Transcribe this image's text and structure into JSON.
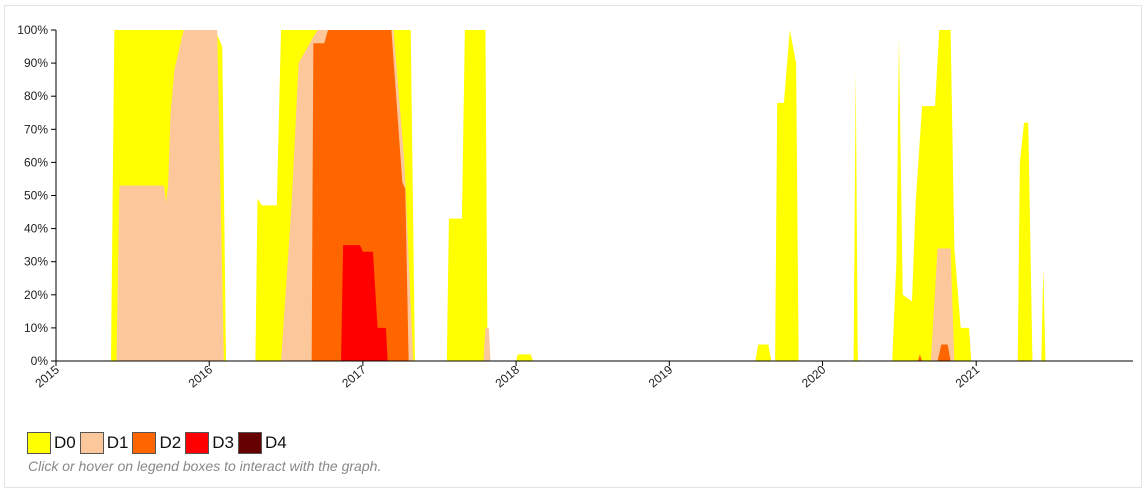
{
  "chart_data": {
    "type": "area",
    "stacked": false,
    "x_axis": {
      "kind": "date",
      "range": [
        "2015-01-01",
        "2021-12-31"
      ],
      "tick_labels": [
        "2015",
        "2016",
        "2017",
        "2018",
        "2019",
        "2020",
        "2021"
      ]
    },
    "y_axis": {
      "range": [
        0,
        100
      ],
      "tick_labels": [
        "0%",
        "10%",
        "20%",
        "30%",
        "40%",
        "50%",
        "60%",
        "70%",
        "80%",
        "90%",
        "100%"
      ]
    },
    "grid": false,
    "legend_position": "bottom-left",
    "series": [
      {
        "name": "D0",
        "color": "#FFFF00",
        "points": [
          [
            "2015-05-12",
            0
          ],
          [
            "2015-05-20",
            100
          ],
          [
            "2015-08-01",
            100
          ],
          [
            "2015-08-20",
            100
          ],
          [
            "2016-01-15",
            100
          ],
          [
            "2016-02-01",
            95
          ],
          [
            "2016-02-10",
            0
          ],
          [
            "2016-04-20",
            0
          ],
          [
            "2016-04-25",
            49
          ],
          [
            "2016-05-05",
            47
          ],
          [
            "2016-06-10",
            47
          ],
          [
            "2016-06-20",
            100
          ],
          [
            "2016-07-30",
            100
          ],
          [
            "2016-08-01",
            100
          ],
          [
            "2017-04-25",
            100
          ],
          [
            "2017-05-05",
            0
          ],
          [
            "2017-07-20",
            0
          ],
          [
            "2017-07-25",
            43
          ],
          [
            "2017-08-25",
            43
          ],
          [
            "2017-09-01",
            100
          ],
          [
            "2017-10-20",
            100
          ],
          [
            "2017-10-25",
            0
          ],
          [
            "2018-01-01",
            0
          ],
          [
            "2018-01-05",
            2
          ],
          [
            "2018-02-05",
            2
          ],
          [
            "2018-02-10",
            0
          ],
          [
            "2019-07-25",
            0
          ],
          [
            "2019-08-01",
            5
          ],
          [
            "2019-08-25",
            5
          ],
          [
            "2019-09-01",
            0
          ],
          [
            "2019-09-10",
            0
          ],
          [
            "2019-09-15",
            78
          ],
          [
            "2019-10-01",
            78
          ],
          [
            "2019-10-15",
            100
          ],
          [
            "2019-10-30",
            90
          ],
          [
            "2019-11-05",
            0
          ],
          [
            "2020-03-15",
            0
          ],
          [
            "2020-03-20",
            88
          ],
          [
            "2020-03-25",
            0
          ],
          [
            "2020-06-15",
            0
          ],
          [
            "2020-06-25",
            30
          ],
          [
            "2020-07-01",
            98
          ],
          [
            "2020-07-10",
            20
          ],
          [
            "2020-08-01",
            18
          ],
          [
            "2020-08-10",
            48
          ],
          [
            "2020-08-25",
            77
          ],
          [
            "2020-09-25",
            77
          ],
          [
            "2020-10-05",
            100
          ],
          [
            "2020-11-01",
            100
          ],
          [
            "2020-11-10",
            34
          ],
          [
            "2020-11-25",
            10
          ],
          [
            "2020-12-15",
            10
          ],
          [
            "2020-12-20",
            0
          ],
          [
            "2021-04-10",
            0
          ],
          [
            "2021-04-15",
            60
          ],
          [
            "2021-04-25",
            72
          ],
          [
            "2021-05-05",
            72
          ],
          [
            "2021-05-15",
            0
          ],
          [
            "2021-06-05",
            0
          ],
          [
            "2021-06-10",
            28
          ],
          [
            "2021-06-15",
            0
          ]
        ]
      },
      {
        "name": "D1",
        "color": "#FCC89B",
        "points": [
          [
            "2015-05-25",
            0
          ],
          [
            "2015-06-01",
            53
          ],
          [
            "2015-09-15",
            53
          ],
          [
            "2015-09-20",
            48
          ],
          [
            "2015-09-25",
            53
          ],
          [
            "2015-10-01",
            75
          ],
          [
            "2015-10-10",
            88
          ],
          [
            "2015-11-01",
            100
          ],
          [
            "2016-01-05",
            100
          ],
          [
            "2016-01-20",
            100
          ],
          [
            "2016-02-05",
            0
          ],
          [
            "2016-06-20",
            0
          ],
          [
            "2016-07-15",
            47
          ],
          [
            "2016-08-01",
            90
          ],
          [
            "2016-09-01",
            97
          ],
          [
            "2016-09-15",
            100
          ],
          [
            "2017-03-15",
            100
          ],
          [
            "2017-04-10",
            60
          ],
          [
            "2017-05-01",
            0
          ],
          [
            "2017-10-15",
            0
          ],
          [
            "2017-10-20",
            10
          ],
          [
            "2017-10-28",
            10
          ],
          [
            "2017-11-01",
            0
          ],
          [
            "2020-09-15",
            0
          ],
          [
            "2020-10-01",
            34
          ],
          [
            "2020-11-01",
            34
          ],
          [
            "2020-11-10",
            0
          ]
        ]
      },
      {
        "name": "D2",
        "color": "#FF6600",
        "points": [
          [
            "2016-09-01",
            0
          ],
          [
            "2016-09-05",
            96
          ],
          [
            "2016-10-01",
            96
          ],
          [
            "2016-10-10",
            100
          ],
          [
            "2017-02-15",
            100
          ],
          [
            "2017-03-10",
            100
          ],
          [
            "2017-04-05",
            54
          ],
          [
            "2017-04-12",
            52
          ],
          [
            "2017-04-20",
            0
          ],
          [
            "2020-08-15",
            0
          ],
          [
            "2020-08-20",
            2
          ],
          [
            "2020-08-25",
            0
          ],
          [
            "2020-10-01",
            0
          ],
          [
            "2020-10-10",
            5
          ],
          [
            "2020-10-25",
            5
          ],
          [
            "2020-11-01",
            0
          ]
        ]
      },
      {
        "name": "D3",
        "color": "#FF0000",
        "points": [
          [
            "2016-11-10",
            0
          ],
          [
            "2016-11-15",
            35
          ],
          [
            "2016-12-25",
            35
          ],
          [
            "2017-01-01",
            33
          ],
          [
            "2017-01-25",
            33
          ],
          [
            "2017-02-05",
            10
          ],
          [
            "2017-02-25",
            10
          ],
          [
            "2017-03-01",
            0
          ]
        ]
      },
      {
        "name": "D4",
        "color": "#660000",
        "points": []
      }
    ]
  },
  "legend": {
    "items": [
      {
        "label": "D0",
        "color": "#FFFF00"
      },
      {
        "label": "D1",
        "color": "#FCC89B"
      },
      {
        "label": "D2",
        "color": "#FF6600"
      },
      {
        "label": "D3",
        "color": "#FF0000"
      },
      {
        "label": "D4",
        "color": "#660000"
      }
    ],
    "hint": "Click or hover on legend boxes to interact with the graph."
  }
}
